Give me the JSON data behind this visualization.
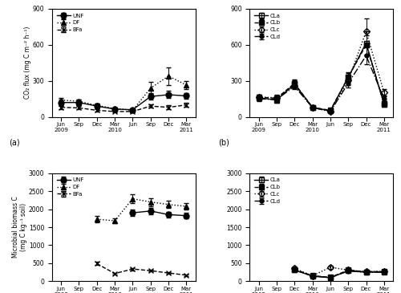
{
  "x_ticks": [
    0,
    1,
    2,
    3,
    4,
    5,
    6,
    7
  ],
  "panel_a": {
    "UNF": {
      "x": [
        0,
        1,
        2,
        3,
        4,
        5,
        6,
        7
      ],
      "y": [
        120,
        120,
        90,
        65,
        60,
        170,
        185,
        175
      ],
      "yerr": [
        25,
        22,
        18,
        12,
        10,
        28,
        30,
        25
      ]
    },
    "DF": {
      "x": [
        0,
        1,
        2,
        3,
        4,
        5,
        6,
        7
      ],
      "y": [
        140,
        130,
        95,
        70,
        55,
        240,
        340,
        265
      ],
      "yerr": [
        20,
        18,
        14,
        10,
        8,
        50,
        75,
        35
      ]
    },
    "BFa": {
      "x": [
        0,
        1,
        2,
        3,
        4,
        5,
        6,
        7
      ],
      "y": [
        80,
        75,
        55,
        45,
        45,
        90,
        80,
        100
      ],
      "yerr": [
        14,
        13,
        10,
        8,
        8,
        15,
        18,
        18
      ]
    }
  },
  "panel_a_ylim": [
    0,
    900
  ],
  "panel_a_yticks": [
    0,
    300,
    600,
    900
  ],
  "panel_a_ylabel": "CO₂ flux (mg C m⁻² h⁻¹)",
  "panel_b": {
    "CLa": {
      "x": [
        0,
        1,
        2,
        3,
        4,
        5,
        6,
        7
      ],
      "y": [
        160,
        140,
        275,
        80,
        50,
        330,
        615,
        105
      ]
    },
    "CLb": {
      "x": [
        0,
        1,
        2,
        3,
        4,
        5,
        6,
        7
      ],
      "y": [
        165,
        155,
        280,
        80,
        55,
        330,
        600,
        110
      ]
    },
    "CLc": {
      "x": [
        0,
        1,
        2,
        3,
        4,
        5,
        6,
        7
      ],
      "y": [
        165,
        160,
        260,
        78,
        45,
        305,
        710,
        205
      ]
    },
    "CLd": {
      "x": [
        0,
        1,
        2,
        3,
        4,
        5,
        6,
        7
      ],
      "y": [
        150,
        145,
        255,
        78,
        45,
        280,
        510,
        150
      ]
    },
    "CLa_err": [
      20,
      20,
      30,
      12,
      15,
      40,
      100,
      18
    ],
    "CLb_err": [
      18,
      22,
      35,
      12,
      12,
      35,
      80,
      20
    ],
    "CLc_err": [
      20,
      25,
      25,
      12,
      12,
      38,
      110,
      28
    ],
    "CLd_err": [
      18,
      20,
      25,
      12,
      10,
      32,
      70,
      22
    ]
  },
  "panel_b_ylim": [
    0,
    900
  ],
  "panel_b_yticks": [
    0,
    300,
    600,
    900
  ],
  "panel_c": {
    "UNF": {
      "x": [
        4,
        5,
        6,
        7
      ],
      "y": [
        1900,
        1950,
        1850,
        1820
      ],
      "yerr": [
        80,
        95,
        80,
        75
      ]
    },
    "DF": {
      "x": [
        2,
        3,
        4,
        5,
        6,
        7
      ],
      "y": [
        1720,
        1680,
        2290,
        2200,
        2130,
        2080
      ],
      "yerr": [
        90,
        75,
        120,
        110,
        95,
        90
      ]
    },
    "BFa": {
      "x": [
        2,
        3,
        4,
        5,
        6,
        7
      ],
      "y": [
        490,
        215,
        340,
        295,
        230,
        170
      ],
      "yerr": [
        45,
        22,
        32,
        28,
        22,
        18
      ]
    }
  },
  "panel_c_ylim": [
    0,
    3000
  ],
  "panel_c_yticks": [
    0,
    500,
    1000,
    1500,
    2000,
    2500,
    3000
  ],
  "panel_c_ylabel": "Microbial biomass C\n(mg C kg⁻¹ soil)",
  "panel_d": {
    "CLa": {
      "x": [
        2,
        3,
        4,
        5,
        6,
        7
      ],
      "y": [
        310,
        145,
        100,
        290,
        250,
        255
      ]
    },
    "CLb": {
      "x": [
        2,
        3,
        4,
        5,
        6,
        7
      ],
      "y": [
        330,
        155,
        110,
        310,
        265,
        270
      ]
    },
    "CLc": {
      "x": [
        2,
        3,
        4,
        5,
        6,
        7
      ],
      "y": [
        360,
        150,
        390,
        310,
        270,
        280
      ]
    },
    "CLd": {
      "x": [
        2,
        3,
        4,
        5,
        6,
        7
      ],
      "y": [
        310,
        145,
        100,
        285,
        250,
        250
      ]
    },
    "CLa_err": [
      35,
      22,
      18,
      30,
      28,
      28
    ],
    "CLb_err": [
      38,
      25,
      20,
      32,
      28,
      30
    ],
    "CLc_err": [
      40,
      22,
      45,
      35,
      30,
      32
    ],
    "CLd_err": [
      35,
      22,
      18,
      28,
      25,
      28
    ]
  },
  "panel_d_ylim": [
    0,
    3000
  ],
  "panel_d_yticks": [
    0,
    500,
    1000,
    1500,
    2000,
    2500,
    3000
  ],
  "color": "black",
  "ms": 4,
  "lw": 1.0,
  "elw": 0.7,
  "caps": 2
}
